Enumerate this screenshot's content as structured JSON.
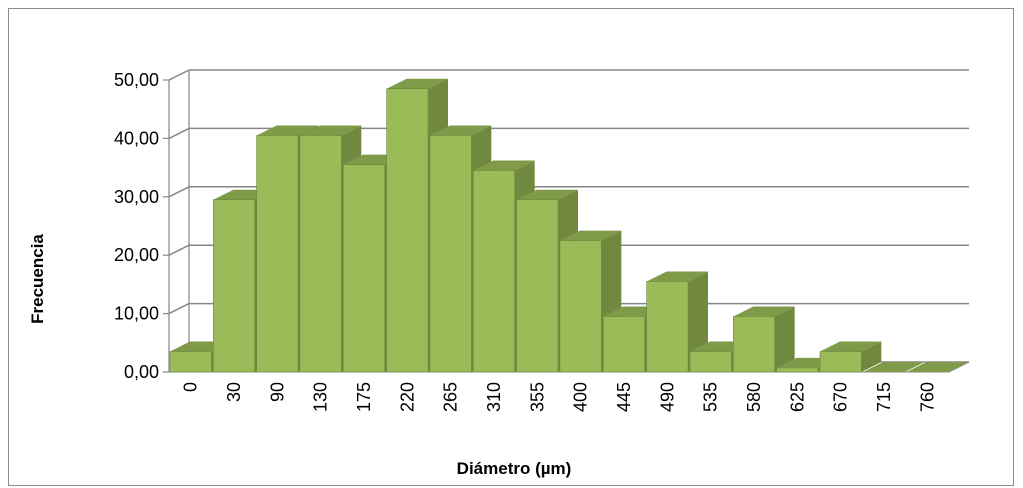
{
  "chart_data": {
    "type": "bar",
    "three_d": true,
    "title": "",
    "xlabel": "Diámetro (µm)",
    "ylabel": "Frecuencia",
    "ylim": [
      0,
      50
    ],
    "yticks": [
      "0,00",
      "10,00",
      "20,00",
      "30,00",
      "40,00",
      "50,00"
    ],
    "grid": true,
    "legend": "none",
    "categories": [
      "0",
      "30",
      "90",
      "130",
      "175",
      "220",
      "265",
      "310",
      "355",
      "400",
      "445",
      "490",
      "535",
      "580",
      "625",
      "670",
      "715",
      "760"
    ],
    "values": [
      3.5,
      29.5,
      40.5,
      40.5,
      35.5,
      48.5,
      40.5,
      34.5,
      29.5,
      22.5,
      9.5,
      15.5,
      3.5,
      9.5,
      0.7,
      3.5,
      0,
      0
    ],
    "colors": {
      "front": "#9bbb59",
      "side": "#71893f",
      "top": "#7f9a48",
      "grid": "#868686",
      "wall": "#ffffff"
    }
  }
}
